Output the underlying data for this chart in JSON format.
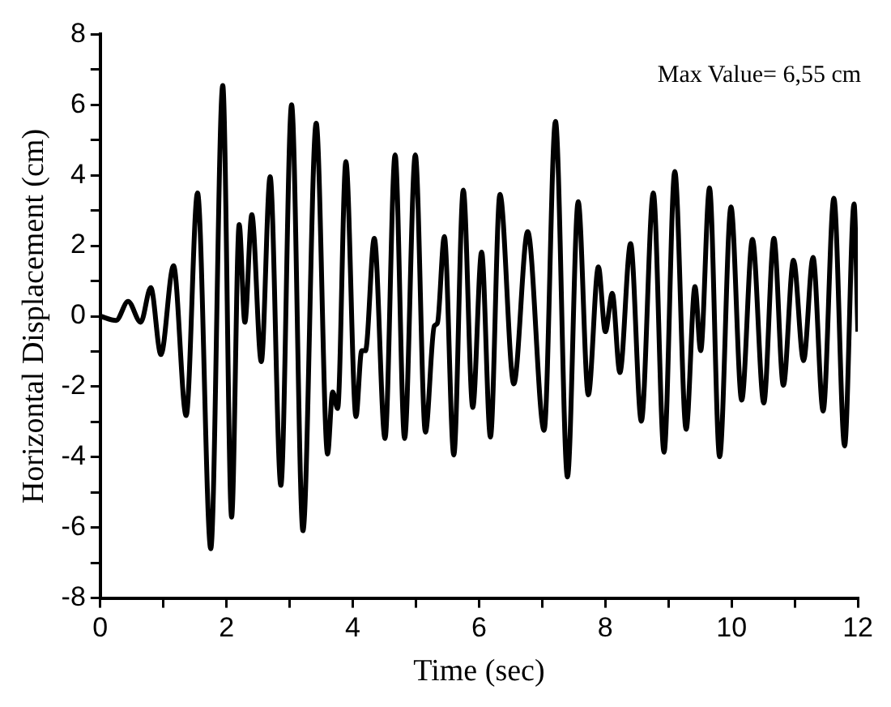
{
  "chart_data": {
    "type": "line",
    "xlabel": "Time (sec)",
    "ylabel": "Horizontal Displacement (cm)",
    "annotations": [
      "Max Value= 6,55 cm"
    ],
    "xlim": [
      0,
      12
    ],
    "ylim": [
      -8,
      8
    ],
    "xticks": [
      0,
      {
        "value": 1,
        "label": null
      },
      2,
      {
        "value": 3,
        "label": null
      },
      4,
      {
        "value": 5,
        "label": null
      },
      6,
      {
        "value": 7,
        "label": null
      },
      8,
      {
        "value": 9,
        "label": null
      },
      10,
      {
        "value": 11,
        "label": null
      },
      12
    ],
    "yticks": [
      -8,
      {
        "value": -7,
        "label": null
      },
      -6,
      {
        "value": -5,
        "label": null
      },
      -4,
      {
        "value": -3,
        "label": null
      },
      -2,
      {
        "value": -1,
        "label": null
      },
      0,
      {
        "value": 1,
        "label": null
      },
      2,
      {
        "value": 3,
        "label": null
      },
      4,
      {
        "value": 5,
        "label": null
      },
      6,
      {
        "value": 7,
        "label": null
      },
      8
    ],
    "grid": false,
    "legend": false,
    "marker": "none",
    "line_style": "solid",
    "series": [
      {
        "color": "#000000",
        "x": [
          0,
          0.25,
          0.44,
          0.64,
          0.8,
          0.96,
          1.16,
          1.36,
          1.54,
          1.75,
          1.94,
          2.08,
          2.2,
          2.29,
          2.4,
          2.55,
          2.69,
          2.86,
          3.03,
          3.21,
          3.42,
          3.6,
          3.68,
          3.76,
          3.89,
          4.05,
          4.14,
          4.2,
          4.34,
          4.51,
          4.67,
          4.82,
          4.99,
          5.15,
          5.29,
          5.34,
          5.45,
          5.6,
          5.75,
          5.9,
          6.04,
          6.18,
          6.33,
          6.55,
          6.77,
          7.03,
          7.21,
          7.4,
          7.57,
          7.73,
          7.89,
          8.0,
          8.11,
          8.23,
          8.4,
          8.57,
          8.76,
          8.93,
          9.1,
          9.28,
          9.42,
          9.51,
          9.65,
          9.81,
          9.99,
          10.16,
          10.33,
          10.51,
          10.67,
          10.82,
          10.98,
          11.14,
          11.29,
          11.45,
          11.62,
          11.79,
          11.94,
          12
        ],
        "values": [
          0,
          -0.12,
          0.42,
          -0.17,
          0.81,
          -1.09,
          1.43,
          -2.82,
          3.5,
          -6.6,
          6.55,
          -5.7,
          2.6,
          -0.17,
          2.88,
          -1.29,
          3.96,
          -4.8,
          6.0,
          -6.09,
          5.48,
          -3.91,
          -2.15,
          -2.62,
          4.39,
          -2.85,
          -0.98,
          -0.98,
          2.21,
          -3.47,
          4.58,
          -3.47,
          4.58,
          -3.29,
          -0.28,
          -0.2,
          2.26,
          -3.94,
          3.58,
          -2.59,
          1.82,
          -3.43,
          3.46,
          -1.92,
          2.4,
          -3.24,
          5.53,
          -4.56,
          3.25,
          -2.23,
          1.4,
          -0.44,
          0.65,
          -1.6,
          2.06,
          -2.98,
          3.5,
          -3.86,
          4.11,
          -3.21,
          0.84,
          -0.98,
          3.64,
          -3.99,
          3.1,
          -2.38,
          2.18,
          -2.46,
          2.21,
          -1.96,
          1.59,
          -1.26,
          1.67,
          -2.69,
          3.35,
          -3.68,
          3.19,
          -0.44
        ]
      }
    ]
  }
}
